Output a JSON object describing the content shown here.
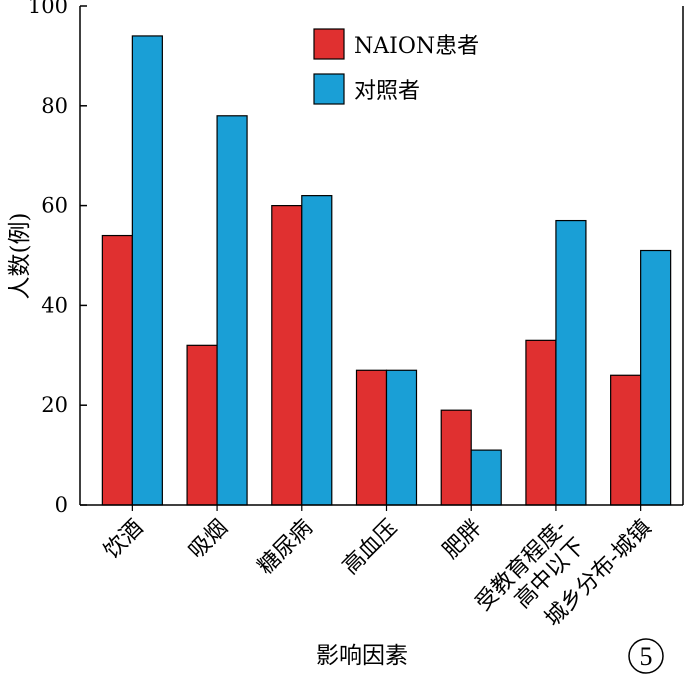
{
  "chart_data": {
    "type": "bar",
    "categories": [
      "饮酒",
      "吸烟",
      "糖尿病",
      "高血压",
      "肥胖",
      "受教育程度-\n高中以下",
      "城乡分布-城镇"
    ],
    "series": [
      {
        "name": "NAION患者",
        "color": "#e03030",
        "values": [
          54,
          32,
          60,
          27,
          19,
          33,
          26
        ]
      },
      {
        "name": "对照者",
        "color": "#1a9fd6",
        "values": [
          94,
          78,
          62,
          27,
          11,
          57,
          51
        ]
      }
    ],
    "xlabel": "影响因素",
    "ylabel": "人数(例)",
    "ylim": [
      0,
      100
    ],
    "yticks": [
      0,
      20,
      40,
      60,
      80,
      100
    ],
    "grid": false,
    "legend_position": "top-right",
    "badge": "5"
  }
}
